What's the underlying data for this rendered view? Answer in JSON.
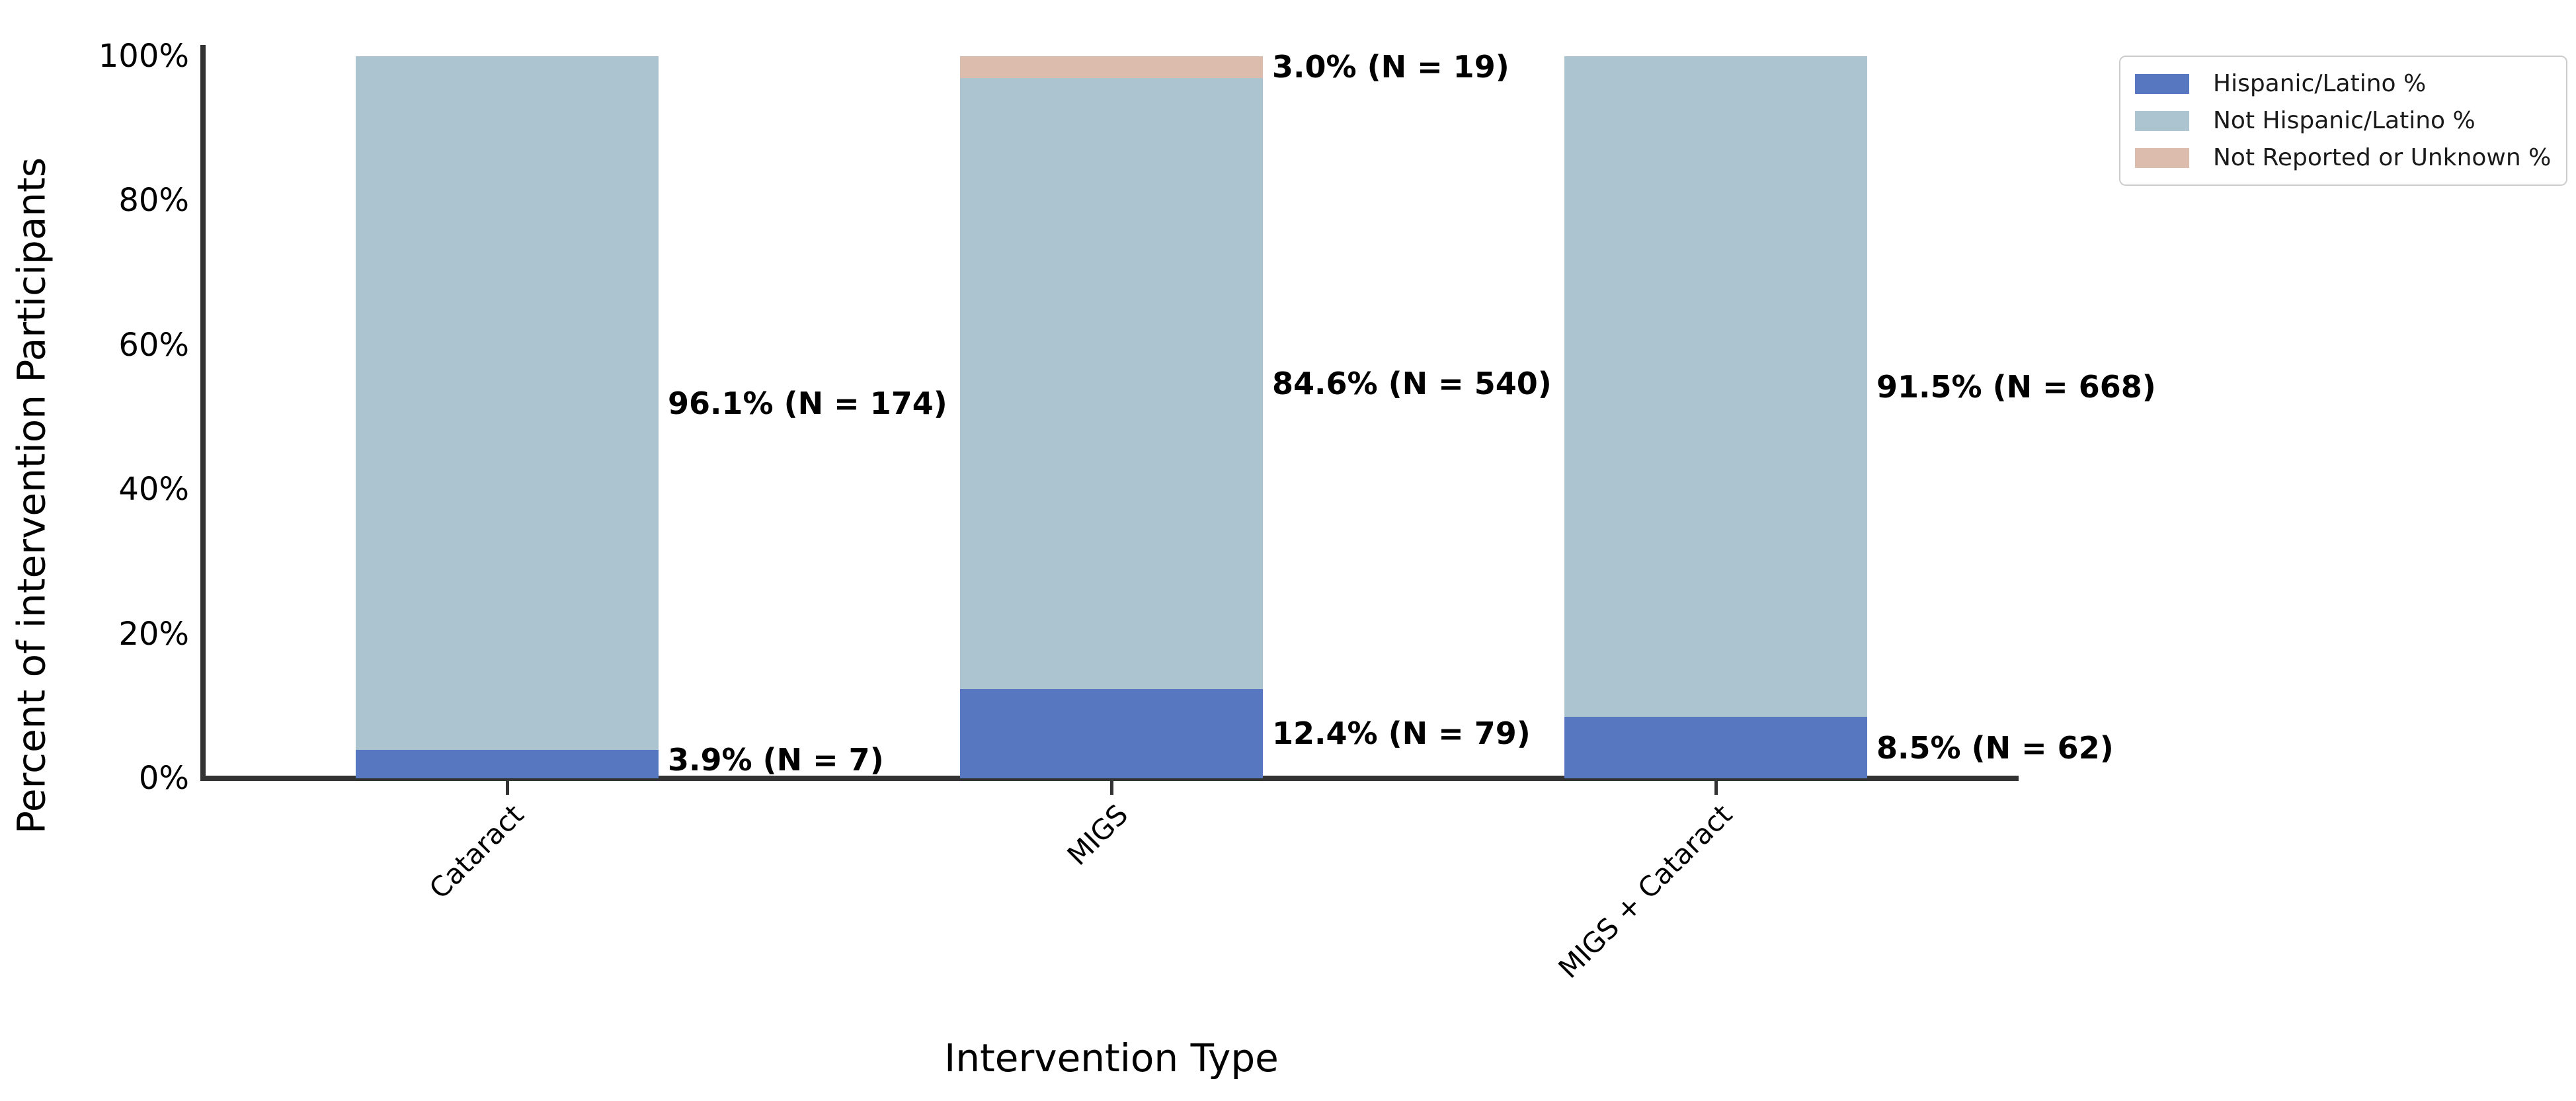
{
  "figure": {
    "background": "#ffffff",
    "axis_color": "#333333"
  },
  "chart_data": {
    "type": "bar",
    "stacked": true,
    "orientation": "vertical",
    "title": "",
    "xlabel": "Intervention Type",
    "ylabel": "Percent of intervention Participants",
    "categories": [
      "Cataract",
      "MIGS",
      "MIGS + Cataract"
    ],
    "series": [
      {
        "name": "Hispanic/Latino %",
        "color": "#5777c0",
        "values": [
          3.9,
          12.4,
          8.5
        ],
        "counts": [
          7,
          79,
          62
        ],
        "labels": [
          "3.9% (N = 7)",
          "12.4% (N = 79)",
          "8.5% (N = 62)"
        ]
      },
      {
        "name": "Not Hispanic/Latino %",
        "color": "#acc4cf",
        "values": [
          96.1,
          84.6,
          91.5
        ],
        "counts": [
          174,
          540,
          668
        ],
        "labels": [
          "96.1% (N = 174)",
          "84.6% (N = 540)",
          "91.5% (N = 668)"
        ]
      },
      {
        "name": "Not Reported or Unknown %",
        "color": "#dcbcac",
        "values": [
          0,
          3.0,
          0
        ],
        "counts": [
          null,
          19,
          null
        ],
        "labels": [
          null,
          "3.0% (N = 19)",
          null
        ]
      }
    ],
    "ylim": [
      0,
      100
    ],
    "yticks": [
      0,
      20,
      40,
      60,
      80,
      100
    ],
    "ytick_labels": [
      "0%",
      "20%",
      "40%",
      "60%",
      "80%",
      "100%"
    ],
    "grid": false,
    "legend": {
      "position": "upper right",
      "entries": [
        "Hispanic/Latino %",
        "Not Hispanic/Latino %",
        "Not Reported or Unknown %"
      ]
    }
  }
}
